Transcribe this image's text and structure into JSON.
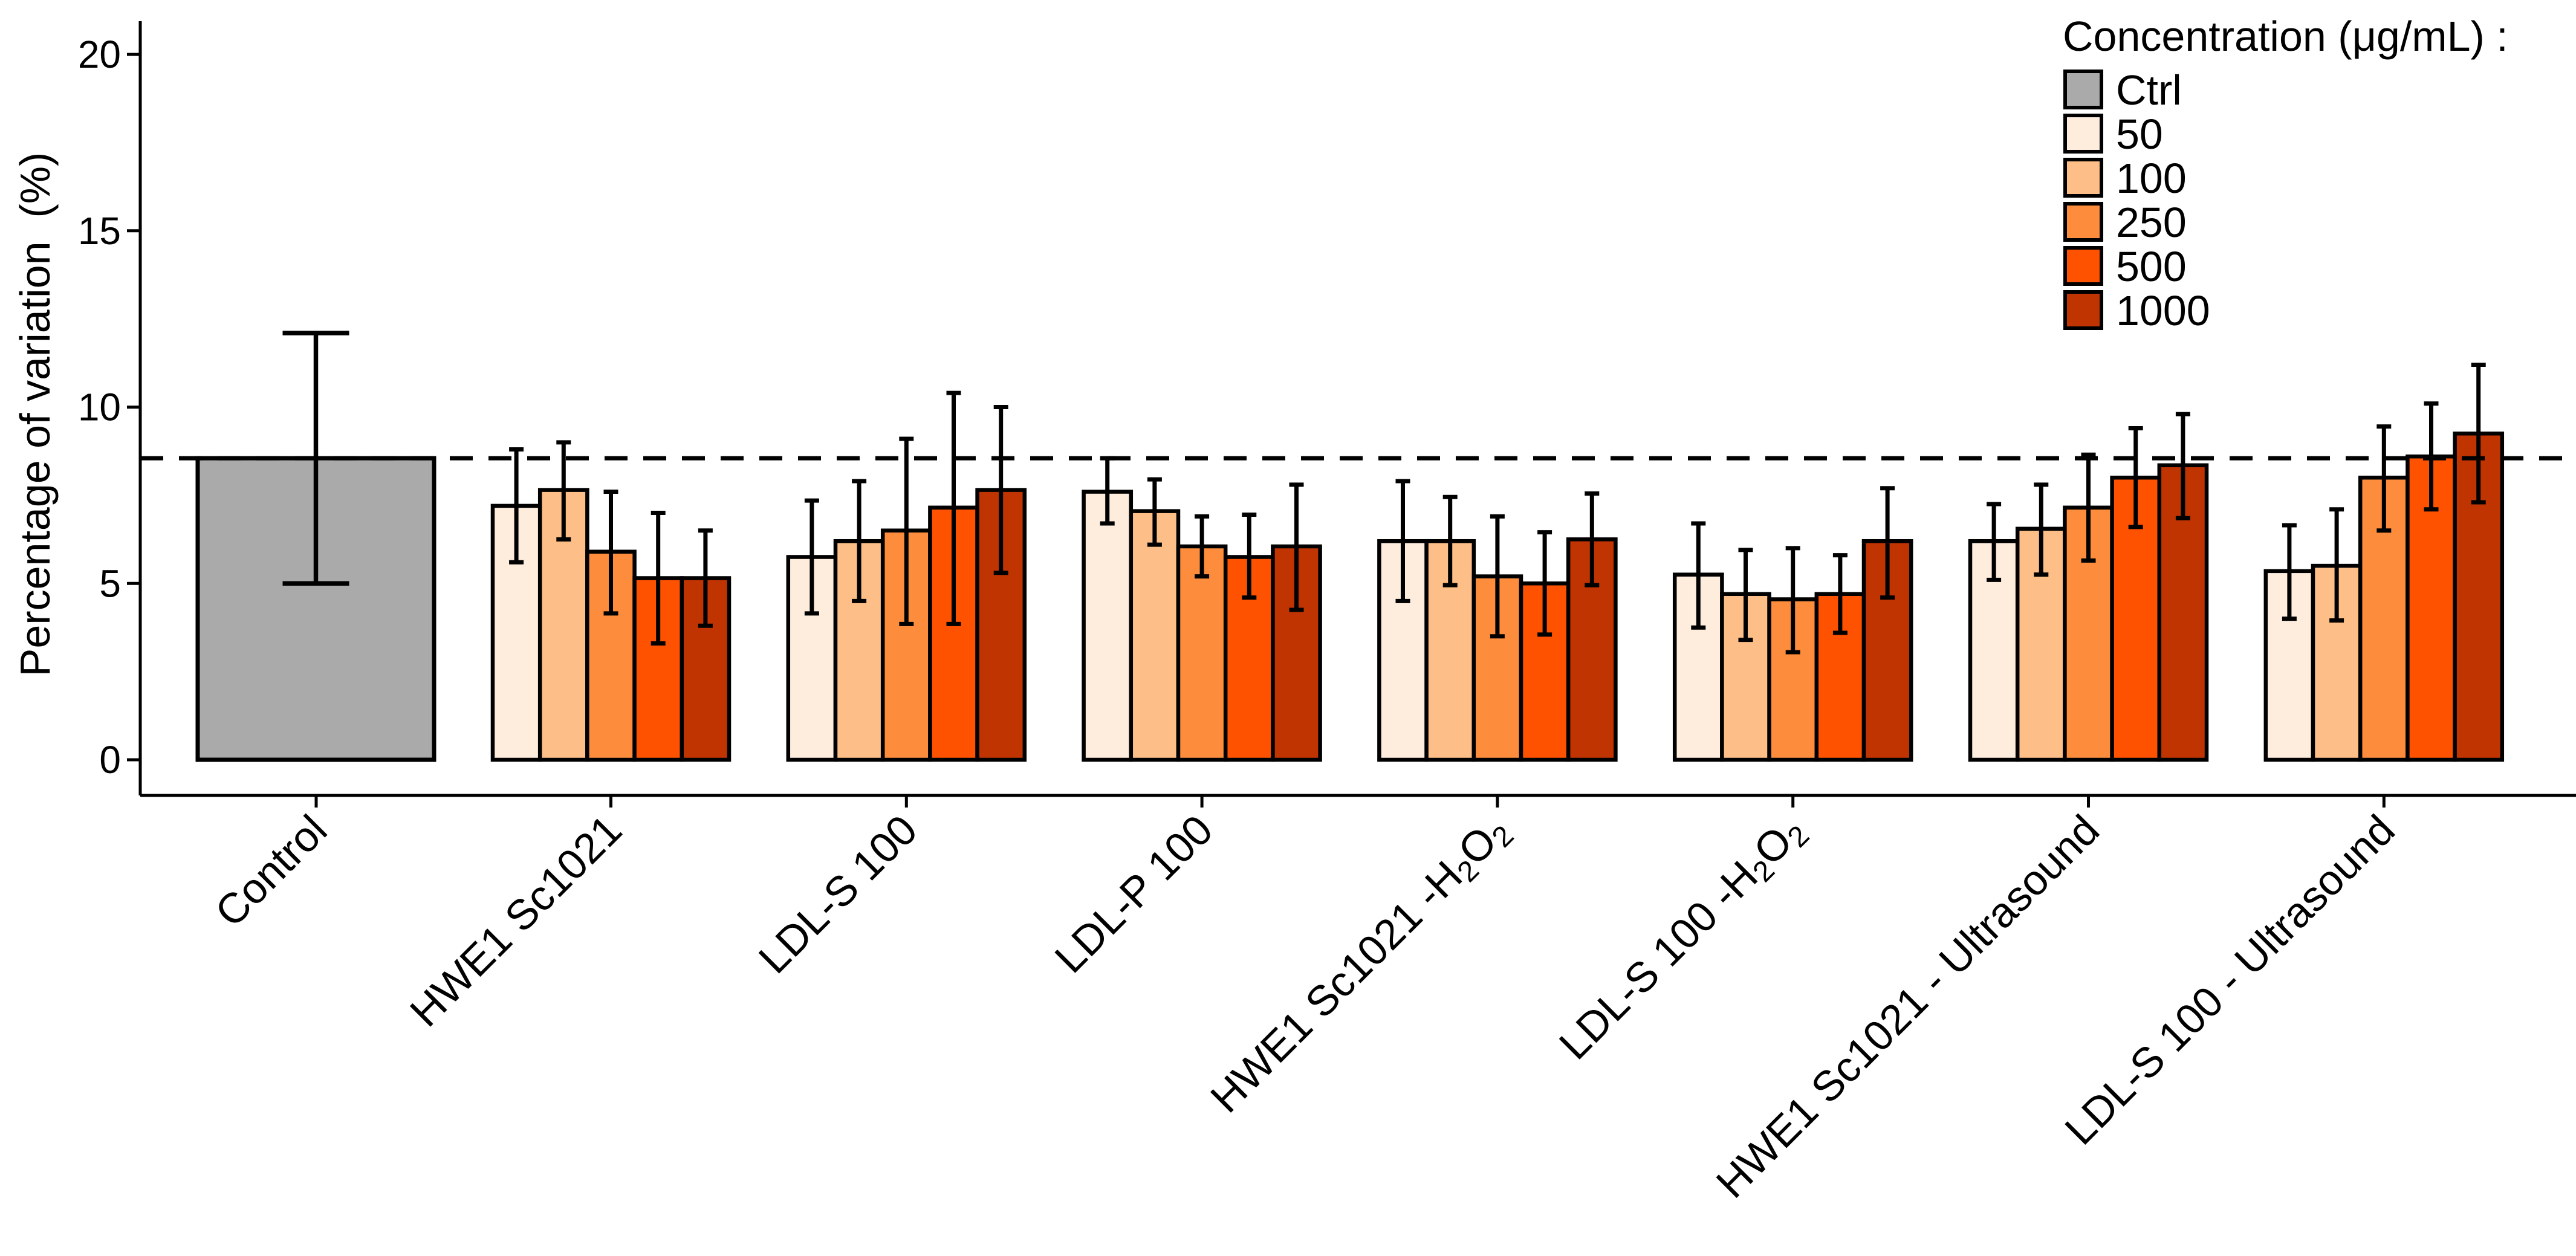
{
  "chart_data": {
    "type": "bar",
    "title": "",
    "xlabel": "",
    "ylabel": "Percentage of variation  (%)",
    "ylim": [
      -0.5,
      20.8
    ],
    "yticks": [
      0,
      5,
      10,
      15,
      20
    ],
    "ytick_labels": [
      "0",
      "5",
      "10",
      "15",
      "20"
    ],
    "grid": false,
    "reference_line": {
      "value": 8.55,
      "style": "dashed"
    },
    "legend": {
      "title": "Concentration (μg/mL) :",
      "placement": "top-right",
      "entries": [
        {
          "label": "Ctrl",
          "color": "#aaaaaa"
        },
        {
          "label": "50",
          "color": "#feeddd"
        },
        {
          "label": "100",
          "color": "#fdbf87"
        },
        {
          "label": "250",
          "color": "#fd8d3c"
        },
        {
          "label": "500",
          "color": "#fe5200"
        },
        {
          "label": "1000",
          "color": "#c03402"
        }
      ]
    },
    "categories": [
      "Control",
      "HWE1 Sc1021",
      "LDL-S 100",
      "LDL-P 100",
      "HWE1 Sc1021 -H2O2",
      "LDL-S 100 -H2O2",
      "HWE1 Sc1021 - Ultrasound",
      "LDL-S 100 - Ultrasound"
    ],
    "category_label_parts": [
      [
        {
          "t": "Control"
        }
      ],
      [
        {
          "t": "HWE1 Sc1021"
        }
      ],
      [
        {
          "t": "LDL-S 100"
        }
      ],
      [
        {
          "t": "LDL-P 100"
        }
      ],
      [
        {
          "t": "HWE1 Sc1021 -H"
        },
        {
          "t": "2",
          "sub": true
        },
        {
          "t": "O"
        },
        {
          "t": "2",
          "sub": true
        }
      ],
      [
        {
          "t": "LDL-S 100 -H"
        },
        {
          "t": "2",
          "sub": true
        },
        {
          "t": "O"
        },
        {
          "t": "2",
          "sub": true
        }
      ],
      [
        {
          "t": "HWE1 Sc1021 - Ultrasound"
        }
      ],
      [
        {
          "t": "LDL-S 100 - Ultrasound"
        }
      ]
    ],
    "control": {
      "series": "Ctrl",
      "value": 8.55,
      "error_low": 5.0,
      "error_high": 12.1
    },
    "series": [
      {
        "name": "50",
        "values": [
          null,
          7.2,
          5.75,
          7.6,
          6.2,
          5.25,
          6.2,
          5.35
        ],
        "error_low": [
          null,
          5.6,
          4.15,
          6.7,
          4.5,
          3.75,
          5.1,
          4.0
        ],
        "error_high": [
          null,
          8.8,
          7.35,
          8.55,
          7.9,
          6.7,
          7.25,
          6.65
        ]
      },
      {
        "name": "100",
        "values": [
          null,
          7.65,
          6.2,
          7.05,
          6.2,
          4.7,
          6.55,
          5.5
        ],
        "error_low": [
          null,
          6.25,
          4.5,
          6.1,
          4.95,
          3.4,
          5.25,
          3.95
        ],
        "error_high": [
          null,
          9.0,
          7.9,
          7.95,
          7.45,
          5.95,
          7.8,
          7.1
        ]
      },
      {
        "name": "250",
        "values": [
          null,
          5.9,
          6.5,
          6.05,
          5.2,
          4.55,
          7.15,
          8.0
        ],
        "error_low": [
          null,
          4.15,
          3.85,
          5.2,
          3.5,
          3.05,
          5.65,
          6.5
        ],
        "error_high": [
          null,
          7.6,
          9.1,
          6.9,
          6.9,
          6.0,
          8.65,
          9.45
        ]
      },
      {
        "name": "500",
        "values": [
          null,
          5.15,
          7.15,
          5.75,
          5.0,
          4.7,
          8.0,
          8.6
        ],
        "error_low": [
          null,
          3.3,
          3.85,
          4.6,
          3.55,
          3.6,
          6.6,
          7.1
        ],
        "error_high": [
          null,
          7.0,
          10.4,
          6.95,
          6.45,
          5.8,
          9.4,
          10.1
        ]
      },
      {
        "name": "1000",
        "values": [
          null,
          5.15,
          7.65,
          6.05,
          6.25,
          6.2,
          8.35,
          9.25
        ],
        "error_low": [
          null,
          3.8,
          5.3,
          4.25,
          4.95,
          4.6,
          6.85,
          7.3
        ],
        "error_high": [
          null,
          6.5,
          10.0,
          7.8,
          7.55,
          7.7,
          9.8,
          11.2
        ]
      }
    ]
  }
}
